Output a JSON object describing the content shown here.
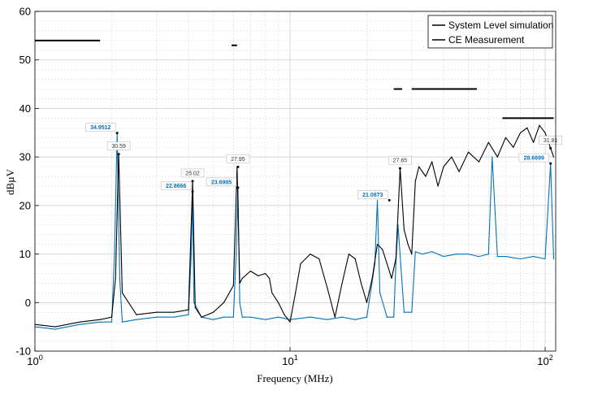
{
  "chart_data": {
    "type": "line",
    "x_scale": "log",
    "xlabel": "Frequency (MHz)",
    "ylabel": "dBµV",
    "xlim": [
      1,
      110
    ],
    "ylim": [
      -10,
      60
    ],
    "x_ticks": [
      {
        "value": 1,
        "base": "10",
        "exp": "0"
      },
      {
        "value": 10,
        "base": "10",
        "exp": "1"
      },
      {
        "value": 100,
        "base": "10",
        "exp": "2"
      }
    ],
    "y_ticks": [
      -10,
      0,
      10,
      20,
      30,
      40,
      50,
      60
    ],
    "grid": true,
    "legend_position": "top-right",
    "colors": {
      "system": "#000000",
      "measurement": "#0072BD",
      "limit": "#000000"
    },
    "series": [
      {
        "name": "System Level simulation",
        "key": "system",
        "x": [
          1.0,
          1.2,
          1.5,
          1.8,
          2.0,
          2.07,
          2.13,
          2.2,
          2.5,
          3.0,
          3.5,
          4.0,
          4.15,
          4.25,
          4.5,
          5.0,
          5.5,
          6.0,
          6.2,
          6.35,
          6.5,
          7.0,
          7.5,
          8.0,
          8.3,
          8.5,
          9.0,
          9.5,
          10.0,
          10.5,
          11.0,
          12.0,
          13.0,
          14.0,
          15.0,
          16.0,
          17.0,
          18.0,
          19.0,
          20.0,
          21.0,
          22.0,
          23.0,
          24.0,
          25.0,
          26.0,
          27.0,
          28.0,
          29.0,
          30.0,
          31.0,
          32.0,
          34.0,
          36.0,
          38.0,
          40.0,
          43.0,
          46.0,
          50.0,
          55.0,
          60.0,
          65.0,
          70.0,
          75.0,
          80.0,
          85.0,
          90.0,
          95.0,
          100.0,
          105.0,
          108.0
        ],
        "y": [
          -4.5,
          -5.0,
          -4.0,
          -3.5,
          -3.0,
          5.0,
          30.59,
          2.0,
          -2.5,
          -2.0,
          -2.0,
          -1.5,
          25.02,
          -1.0,
          -3.0,
          -2.0,
          0.0,
          3.5,
          27.95,
          4.0,
          5.0,
          6.5,
          5.5,
          6.0,
          5.0,
          2.0,
          0.0,
          -2.5,
          -4.0,
          2.0,
          8.0,
          10.0,
          9.0,
          3.0,
          -3.0,
          4.0,
          10.0,
          9.0,
          4.0,
          0.0,
          5.0,
          12.0,
          11.0,
          8.0,
          5.0,
          9.0,
          27.65,
          15.0,
          12.0,
          10.0,
          25.0,
          28.0,
          26.0,
          29.0,
          24.0,
          28.0,
          30.0,
          27.0,
          31.0,
          29.0,
          33.0,
          30.0,
          34.0,
          32.0,
          35.0,
          36.0,
          33.0,
          36.5,
          35.0,
          31.81,
          30.0
        ]
      },
      {
        "name": "CE Measurement",
        "key": "measurement",
        "x": [
          1.0,
          1.2,
          1.5,
          1.8,
          2.0,
          2.05,
          2.1,
          2.15,
          2.2,
          2.5,
          3.0,
          3.5,
          4.0,
          4.1,
          4.15,
          4.2,
          4.5,
          5.0,
          5.5,
          6.0,
          6.15,
          6.25,
          6.35,
          6.5,
          7.0,
          8.0,
          9.0,
          10.0,
          12.0,
          14.0,
          16.0,
          18.0,
          20.0,
          21.5,
          22.0,
          22.5,
          24.0,
          25.5,
          26.0,
          26.5,
          28.0,
          30.0,
          31.0,
          33.0,
          36.0,
          40.0,
          45.0,
          50.0,
          55.0,
          60.0,
          62.0,
          65.0,
          70.0,
          80.0,
          90.0,
          100.0,
          105.0,
          108.0
        ],
        "y": [
          -5.0,
          -5.5,
          -4.5,
          -4.0,
          -4.0,
          10.0,
          34.9512,
          5.0,
          -4.0,
          -3.5,
          -3.0,
          -3.0,
          -2.5,
          10.0,
          22.8666,
          0.0,
          -3.0,
          -3.5,
          -3.0,
          -3.0,
          10.0,
          23.6905,
          0.0,
          -3.0,
          -3.0,
          -3.5,
          -3.0,
          -3.5,
          -3.0,
          -3.5,
          -3.0,
          -3.5,
          -3.0,
          8.0,
          21.0873,
          2.0,
          -3.0,
          -3.0,
          8.0,
          16.0,
          -2.0,
          -2.0,
          10.5,
          10.0,
          10.5,
          9.5,
          10.0,
          10.0,
          9.5,
          10.0,
          30.0,
          9.5,
          9.5,
          9.0,
          9.5,
          9.0,
          28.6699,
          9.0
        ]
      }
    ],
    "limit_lines": [
      {
        "x1": 1.0,
        "x2": 1.8,
        "y": 54
      },
      {
        "x1": 5.9,
        "x2": 6.2,
        "y": 53
      },
      {
        "x1": 25.5,
        "x2": 27.5,
        "y": 44
      },
      {
        "x1": 30.0,
        "x2": 54.0,
        "y": 44
      },
      {
        "x1": 68.0,
        "x2": 108.0,
        "y": 38
      }
    ],
    "annotations": [
      {
        "x": 2.1,
        "y": 34.9512,
        "label": "34.9512",
        "series": "measurement"
      },
      {
        "x": 2.13,
        "y": 30.59,
        "label": "30.59",
        "series": "system"
      },
      {
        "x": 4.15,
        "y": 25.02,
        "label": "25.02",
        "series": "system"
      },
      {
        "x": 4.15,
        "y": 22.8666,
        "label": "22.8666",
        "series": "measurement"
      },
      {
        "x": 6.25,
        "y": 27.95,
        "label": "27.95",
        "series": "system"
      },
      {
        "x": 6.25,
        "y": 23.6905,
        "label": "23.6905",
        "series": "measurement"
      },
      {
        "x": 27.0,
        "y": 27.65,
        "label": "27.65",
        "series": "system"
      },
      {
        "x": 24.5,
        "y": 21.0873,
        "label": "21.0873",
        "series": "measurement"
      },
      {
        "x": 105.0,
        "y": 31.81,
        "label": "31.81",
        "series": "system"
      },
      {
        "x": 105.0,
        "y": 28.6699,
        "label": "28.6699",
        "series": "measurement"
      }
    ]
  }
}
